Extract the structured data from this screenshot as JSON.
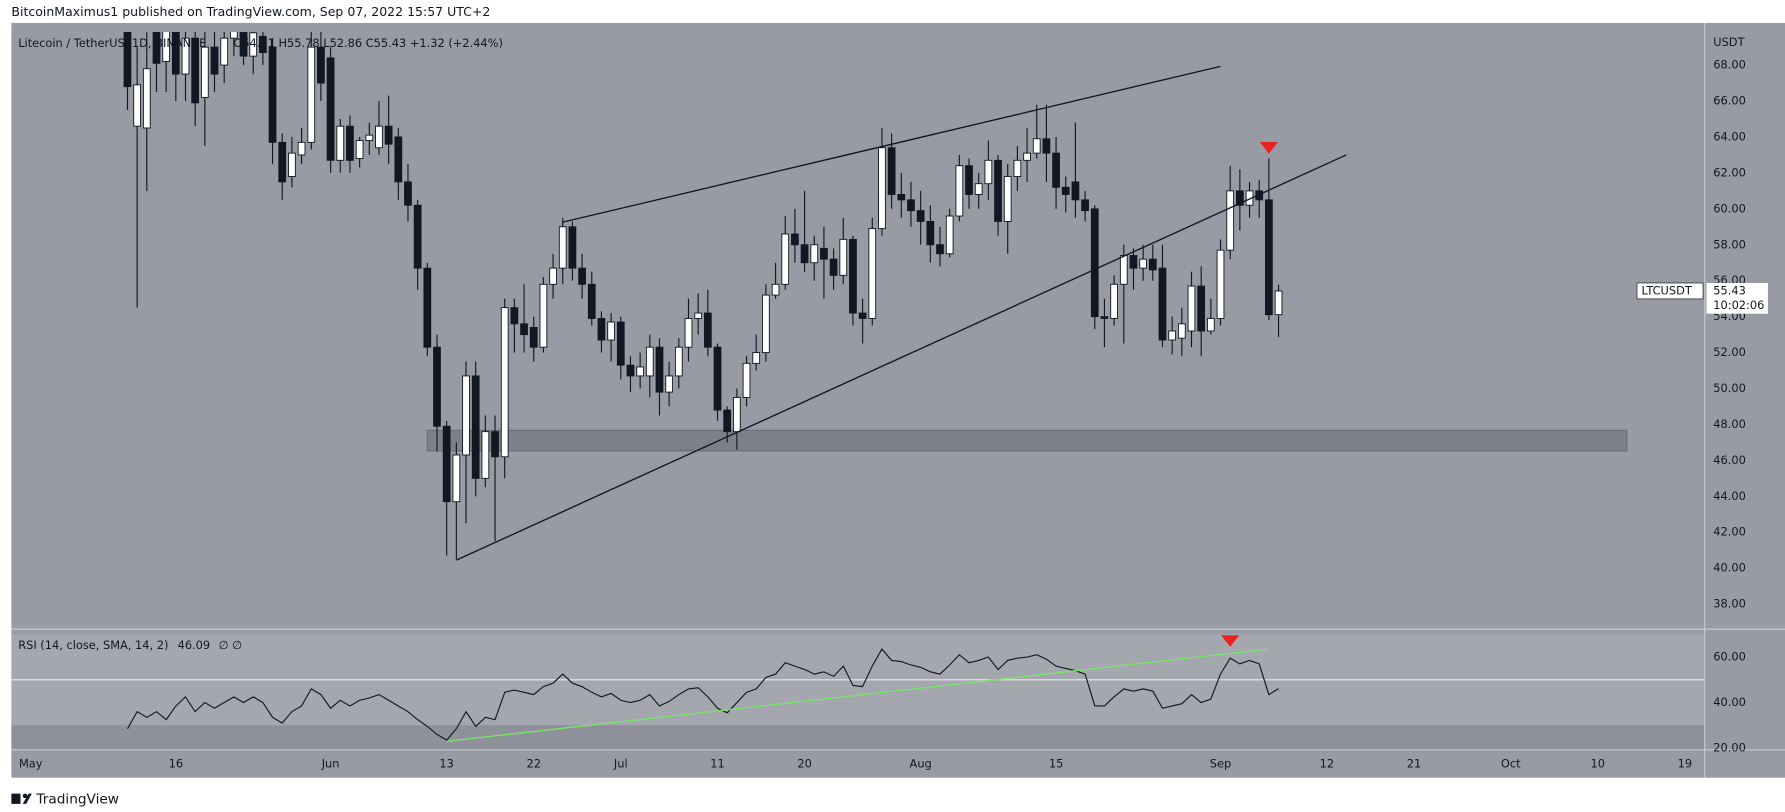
{
  "header": {
    "publisher": "BitcoinMaximus1 published on TradingView.com, Sep 07, 2022 15:57 UTC+2",
    "footer": "TradingView"
  },
  "chart_data": {
    "type": "candlestick",
    "title": "Litecoin / TetherUS, 1D, BINANCE",
    "ohlc_label": "O54.11 H55.78 L52.86 C55.43 +1.32 (+2.44%)",
    "symbol": "LTCUSDT",
    "countdown": "10:02:06",
    "currency": "USDT",
    "up_color": "#ffffff",
    "down_color": "#131722",
    "background": "#989ba3",
    "grid": false,
    "x": [
      "2022-05-11",
      "2022-05-12",
      "2022-05-13",
      "2022-05-14",
      "2022-05-15",
      "2022-05-16",
      "2022-05-17",
      "2022-05-18",
      "2022-05-19",
      "2022-05-20",
      "2022-05-21",
      "2022-05-22",
      "2022-05-23",
      "2022-05-24",
      "2022-05-25",
      "2022-05-26",
      "2022-05-27",
      "2022-05-28",
      "2022-05-29",
      "2022-05-30",
      "2022-05-31",
      "2022-06-01",
      "2022-06-02",
      "2022-06-03",
      "2022-06-04",
      "2022-06-05",
      "2022-06-06",
      "2022-06-07",
      "2022-06-08",
      "2022-06-09",
      "2022-06-10",
      "2022-06-11",
      "2022-06-12",
      "2022-06-13",
      "2022-06-14",
      "2022-06-15",
      "2022-06-16",
      "2022-06-17",
      "2022-06-18",
      "2022-06-19",
      "2022-06-20",
      "2022-06-21",
      "2022-06-22",
      "2022-06-23",
      "2022-06-24",
      "2022-06-25",
      "2022-06-26",
      "2022-06-27",
      "2022-06-28",
      "2022-06-29",
      "2022-06-30",
      "2022-07-01",
      "2022-07-02",
      "2022-07-03",
      "2022-07-04",
      "2022-07-05",
      "2022-07-06",
      "2022-07-07",
      "2022-07-08",
      "2022-07-09",
      "2022-07-10",
      "2022-07-11",
      "2022-07-12",
      "2022-07-13",
      "2022-07-14",
      "2022-07-15",
      "2022-07-16",
      "2022-07-17",
      "2022-07-18",
      "2022-07-19",
      "2022-07-20",
      "2022-07-21",
      "2022-07-22",
      "2022-07-23",
      "2022-07-24",
      "2022-07-25",
      "2022-07-26",
      "2022-07-27",
      "2022-07-28",
      "2022-07-29",
      "2022-07-30",
      "2022-07-31",
      "2022-08-01",
      "2022-08-02",
      "2022-08-03",
      "2022-08-04",
      "2022-08-05",
      "2022-08-06",
      "2022-08-07",
      "2022-08-08",
      "2022-08-09",
      "2022-08-10",
      "2022-08-11",
      "2022-08-12",
      "2022-08-13",
      "2022-08-14",
      "2022-08-15",
      "2022-08-16",
      "2022-08-17",
      "2022-08-18",
      "2022-08-19",
      "2022-08-20",
      "2022-08-21",
      "2022-08-22",
      "2022-08-23",
      "2022-08-24",
      "2022-08-25",
      "2022-08-26",
      "2022-08-27",
      "2022-08-28",
      "2022-08-29",
      "2022-08-30",
      "2022-08-31",
      "2022-09-01",
      "2022-09-02",
      "2022-09-03",
      "2022-09-04",
      "2022-09-05",
      "2022-09-06",
      "2022-09-07"
    ],
    "open": [
      72,
      64.6,
      64.5,
      70.5,
      68.2,
      70.5,
      67.5,
      69.5,
      66.2,
      69,
      68,
      69.5,
      70,
      68.5,
      69.6,
      69,
      63.7,
      61.8,
      63,
      63.7,
      69,
      68.4,
      62.7,
      64.6,
      62.8,
      63.8,
      63.4,
      64.6,
      64,
      61.5,
      60.2,
      56.7,
      52.3,
      47.9,
      43.7,
      46.3,
      50.7,
      45,
      47.6,
      46.2,
      54.5,
      53.6,
      53.4,
      52.3,
      55.8,
      56.7,
      59,
      56.7,
      55.8,
      53.9,
      52.7,
      53.7,
      51.3,
      50.7,
      50.7,
      52.3,
      49.8,
      50.7,
      52.3,
      53.9,
      54.2,
      52.3,
      48.8,
      47.6,
      49.5,
      51.4,
      52,
      55.2,
      55.8,
      58.6,
      58,
      57,
      57.8,
      57.2,
      56.3,
      58.3,
      54.2,
      53.9,
      58.9,
      63.4,
      60.8,
      60.5,
      59.9,
      59.3,
      58,
      57.5,
      59.6,
      62.4,
      60.8,
      61.4,
      62.7,
      59.3,
      61.8,
      62.7,
      63.1,
      63.9,
      63.1,
      61.2,
      61.5,
      60.5,
      60,
      54,
      53.9,
      55.8,
      57.4,
      56.7,
      57.2,
      56.7,
      52.7,
      52.8,
      53.2,
      55.7,
      53.2,
      53.9,
      57.7,
      61,
      60.2,
      61,
      60.5,
      54.11
    ],
    "high": [
      75,
      69,
      70,
      72,
      72,
      71,
      71,
      70.5,
      70,
      70,
      70.5,
      71,
      71,
      70.5,
      70.5,
      69.5,
      64.2,
      64,
      64.5,
      70,
      70.5,
      69,
      65,
      65.2,
      64,
      64.8,
      66,
      66.3,
      64.5,
      62.5,
      60.5,
      57,
      53,
      48.2,
      47,
      51.5,
      51.5,
      48.5,
      48.5,
      55,
      55,
      55.8,
      54,
      56.2,
      57.5,
      59.5,
      59.3,
      57.5,
      56.5,
      54.3,
      54.2,
      54,
      51.8,
      52,
      53,
      52.8,
      51.5,
      52.8,
      55,
      55.3,
      55.5,
      52.5,
      49,
      50,
      51.8,
      53,
      55.8,
      57,
      59.6,
      60,
      61,
      58.5,
      59,
      57.8,
      59.5,
      58.5,
      55,
      59.5,
      64.5,
      64.2,
      62,
      61.5,
      61,
      60.2,
      59,
      60,
      63,
      62.8,
      62,
      63.8,
      63,
      62.5,
      63.5,
      64.5,
      65.8,
      65.8,
      64,
      61.8,
      64.8,
      61,
      60.2,
      55,
      56.3,
      58,
      57.8,
      58,
      58,
      58,
      54,
      54.5,
      56.5,
      56.8,
      55,
      58.3,
      62.4,
      62.2,
      61.5,
      61.6,
      62.8,
      55.78
    ],
    "low": [
      65.5,
      54.5,
      61,
      66.5,
      66.5,
      66,
      66,
      64.6,
      63.5,
      66.5,
      67,
      68.5,
      68,
      67.5,
      68,
      62.5,
      60.5,
      61.2,
      62.5,
      63.3,
      66,
      62,
      62,
      62,
      62.3,
      63,
      63,
      62.5,
      60.5,
      59.3,
      55.5,
      51.8,
      46.5,
      40.7,
      40.5,
      42.5,
      44,
      44.5,
      41.5,
      45,
      52,
      52,
      51.5,
      52,
      55,
      55.8,
      56,
      55,
      53.5,
      52,
      51.5,
      50.5,
      49.8,
      50,
      49.5,
      48.5,
      49,
      50,
      51.5,
      53,
      51.8,
      48.2,
      47,
      46.6,
      49,
      51,
      51.5,
      55,
      55.5,
      57,
      56.5,
      56,
      55,
      55.5,
      55.8,
      53.5,
      52.5,
      53.5,
      58.5,
      60,
      59.5,
      59,
      58,
      57,
      56.8,
      57.3,
      59.3,
      60,
      60,
      60.5,
      58.5,
      57.5,
      61,
      61.5,
      62.8,
      61.5,
      60,
      59.8,
      59.5,
      59.3,
      53.3,
      52.3,
      53.5,
      52.5,
      55.5,
      56,
      56,
      52.3,
      51.9,
      51.8,
      52.3,
      51.8,
      53,
      53.5,
      57.2,
      58.8,
      59.5,
      59.5,
      53.8,
      52.86
    ],
    "close": [
      66.8,
      66.9,
      67.8,
      68.1,
      70.5,
      67.5,
      69.5,
      65.9,
      69,
      67.5,
      69.5,
      70.2,
      68.5,
      69.8,
      68.7,
      63.7,
      61.5,
      63.1,
      63.7,
      69,
      67,
      62.7,
      64.6,
      62.7,
      63.8,
      64.1,
      64.6,
      63.6,
      61.5,
      60.2,
      56.7,
      52.3,
      47.9,
      43.7,
      46.3,
      50.7,
      45,
      47.6,
      46.2,
      54.5,
      53.6,
      53,
      52.3,
      55.8,
      56.7,
      59,
      56.7,
      55.8,
      53.9,
      52.7,
      53.7,
      51.3,
      50.7,
      51.2,
      52.3,
      49.8,
      50.7,
      52.3,
      53.9,
      54.2,
      52.3,
      48.8,
      47.6,
      49.5,
      51.4,
      52,
      55.2,
      55.8,
      58.6,
      58,
      57,
      58,
      57.2,
      56.3,
      58.3,
      54.2,
      53.9,
      58.9,
      63.4,
      60.8,
      60.5,
      59.9,
      59.3,
      58,
      57.5,
      59.6,
      62.4,
      60.8,
      61.4,
      62.7,
      59.3,
      61.8,
      62.7,
      63.1,
      63.9,
      63.1,
      61.2,
      60.8,
      60.5,
      59.9,
      54,
      53.9,
      55.8,
      57.4,
      56.7,
      57.2,
      56.6,
      52.7,
      53.2,
      53.6,
      55.7,
      53.2,
      53.9,
      57.7,
      61,
      60.2,
      61,
      60.5,
      54.11,
      55.43
    ],
    "xlim": [
      "2022-04-29",
      "2022-10-21"
    ],
    "xticks": [
      {
        "value": "2022-05-01",
        "label": "May"
      },
      {
        "value": "2022-05-16",
        "label": "16"
      },
      {
        "value": "2022-06-01",
        "label": "Jun"
      },
      {
        "value": "2022-06-13",
        "label": "13"
      },
      {
        "value": "2022-06-22",
        "label": "22"
      },
      {
        "value": "2022-07-01",
        "label": "Jul"
      },
      {
        "value": "2022-07-11",
        "label": "11"
      },
      {
        "value": "2022-07-20",
        "label": "20"
      },
      {
        "value": "2022-08-01",
        "label": "Aug"
      },
      {
        "value": "2022-08-15",
        "label": "15"
      },
      {
        "value": "2022-09-01",
        "label": "Sep"
      },
      {
        "value": "2022-09-12",
        "label": "12"
      },
      {
        "value": "2022-09-21",
        "label": "21"
      },
      {
        "value": "2022-10-01",
        "label": "Oct"
      },
      {
        "value": "2022-10-10",
        "label": "10"
      },
      {
        "value": "2022-10-19",
        "label": "19"
      }
    ],
    "ylim": [
      36.64,
      69.84
    ],
    "yticks": [
      {
        "value": 38,
        "label": "38.00"
      },
      {
        "value": 40,
        "label": "40.00"
      },
      {
        "value": 42,
        "label": "42.00"
      },
      {
        "value": 44,
        "label": "44.00"
      },
      {
        "value": 46,
        "label": "46.00"
      },
      {
        "value": 48,
        "label": "48.00"
      },
      {
        "value": 50,
        "label": "50.00"
      },
      {
        "value": 52,
        "label": "52.00"
      },
      {
        "value": 54,
        "label": "54.00"
      },
      {
        "value": 56,
        "label": "56.00"
      },
      {
        "value": 58,
        "label": "58.00"
      },
      {
        "value": 60,
        "label": "60.00"
      },
      {
        "value": 62,
        "label": "62.00"
      },
      {
        "value": 64,
        "label": "64.00"
      },
      {
        "value": 66,
        "label": "66.00"
      },
      {
        "value": 68,
        "label": "68.00"
      }
    ],
    "trendlines": [
      {
        "x": [
          "2022-06-25",
          "2022-09-01"
        ],
        "y": [
          59.26,
          67.93
        ],
        "color": "#131722"
      },
      {
        "x": [
          "2022-06-14",
          "2022-09-14"
        ],
        "y": [
          40.45,
          63.0
        ],
        "color": "#131722"
      }
    ],
    "zone": {
      "x": [
        "2022-06-11",
        "2022-10-13"
      ],
      "y": [
        46.53,
        47.67
      ],
      "color": "#5d6068"
    },
    "markers": [
      {
        "x": "2022-09-06",
        "y": 63.4,
        "color": "#e8231f"
      }
    ],
    "rsi": {
      "type": "line",
      "label": "RSI (14, close, SMA, 14, 2)",
      "extra": "∅ ∅",
      "color": "#131722",
      "values": [
        28.5,
        36,
        33.5,
        36,
        32.5,
        38.5,
        42.5,
        36,
        40,
        37.5,
        40,
        42.5,
        40,
        42.5,
        40,
        33.5,
        31,
        36,
        38.5,
        46,
        43.5,
        37.5,
        41,
        38.5,
        41,
        42,
        43.5,
        41,
        38.5,
        36,
        32.5,
        29.5,
        26,
        23.5,
        28.5,
        36,
        29.5,
        33.5,
        32.5,
        44.5,
        45.5,
        44.5,
        43.5,
        47,
        48.5,
        52.5,
        48.5,
        47,
        44.5,
        42.5,
        44,
        41,
        40,
        41,
        43.5,
        38.5,
        40.5,
        43.5,
        46,
        46.5,
        42.5,
        37.5,
        35.5,
        40,
        44.5,
        46,
        51,
        52.5,
        57.5,
        56,
        54.5,
        52.5,
        53.5,
        51.5,
        56,
        47.5,
        47,
        56,
        63.5,
        58.5,
        58,
        56.5,
        55.5,
        53.5,
        52.5,
        56.5,
        61,
        57.5,
        58.5,
        60,
        54.5,
        58.5,
        59.5,
        60,
        61,
        59,
        56,
        55,
        54,
        52.5,
        38.5,
        38.5,
        42.5,
        46,
        45,
        46,
        45,
        37.5,
        38.5,
        39.5,
        43.5,
        40,
        41.5,
        52.5,
        59.5,
        57,
        58.5,
        57,
        43.5,
        46.09
      ],
      "ylim": [
        19.5,
        72
      ],
      "yticks": [
        {
          "value": 20,
          "label": "20.00"
        },
        {
          "value": 40,
          "label": "40.00"
        },
        {
          "value": 60,
          "label": "60.00"
        }
      ],
      "levels": [
        70,
        50,
        30
      ],
      "trendlines": [
        {
          "x": [
            "2022-06-13",
            "2022-09-06"
          ],
          "y": [
            23,
            63.5
          ],
          "color": "#7be36b"
        }
      ],
      "markers": [
        {
          "x": "2022-09-02",
          "y": 67,
          "color": "#e8231f"
        }
      ]
    }
  }
}
